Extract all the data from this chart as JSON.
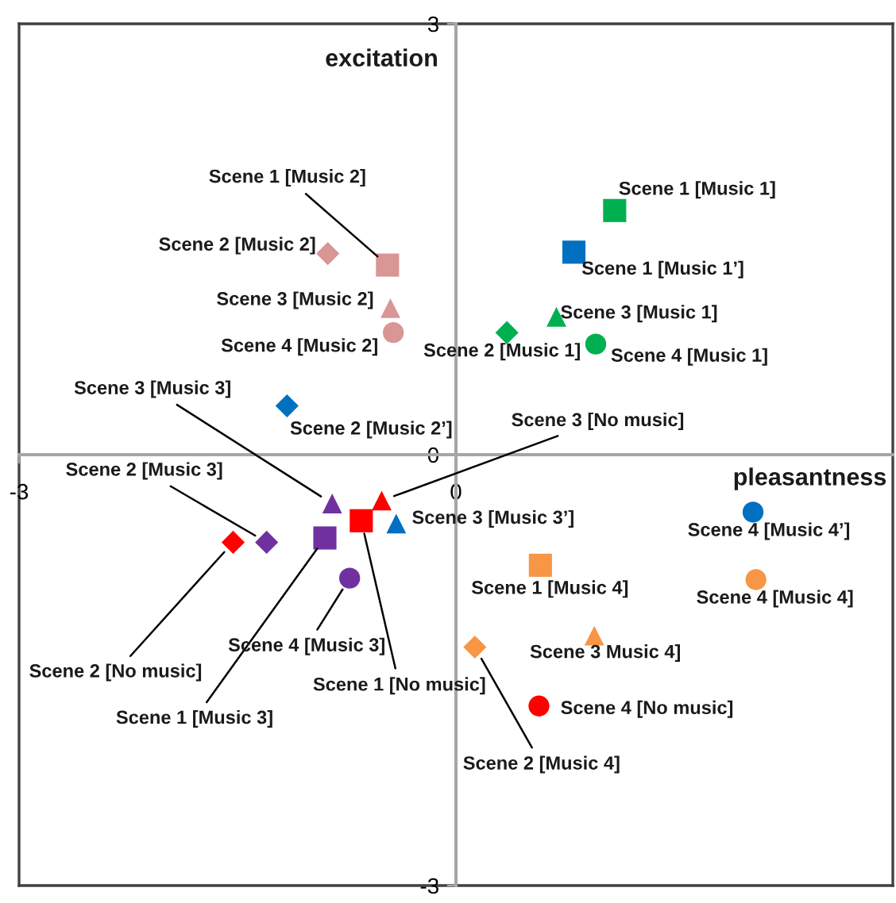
{
  "chart_data": {
    "type": "scatter",
    "xlabel": "pleasantness",
    "ylabel": "excitation",
    "xlim": [
      -3,
      3
    ],
    "ylim": [
      -3,
      3
    ],
    "xticks": [
      -3,
      0
    ],
    "yticks": [
      -3,
      0,
      3
    ],
    "grid": false,
    "legend": false,
    "series": [
      {
        "name": "Scene 1 [Music 1]",
        "color": "#00b050",
        "marker": "square",
        "x": [
          1.09
        ],
        "values": [
          1.7
        ]
      },
      {
        "name": "Scene 1 [Music 1’]",
        "color": "#0070c0",
        "marker": "square",
        "x": [
          0.81
        ],
        "values": [
          1.41
        ]
      },
      {
        "name": "Scene 3 [Music 1]",
        "color": "#00b050",
        "marker": "triangle",
        "x": [
          0.69
        ],
        "values": [
          0.96
        ]
      },
      {
        "name": "Scene 2 [Music 1]",
        "color": "#00b050",
        "marker": "diamond",
        "x": [
          0.35
        ],
        "values": [
          0.85
        ]
      },
      {
        "name": "Scene 4 [Music 1]",
        "color": "#00b050",
        "marker": "circle",
        "x": [
          0.96
        ],
        "values": [
          0.77
        ]
      },
      {
        "name": "Scene 1 [Music 2]",
        "color": "#d99694",
        "marker": "square",
        "x": [
          -0.47
        ],
        "values": [
          1.32
        ]
      },
      {
        "name": "Scene 2 [Music 2]",
        "color": "#d99694",
        "marker": "diamond",
        "x": [
          -0.88
        ],
        "values": [
          1.4
        ]
      },
      {
        "name": "Scene 3 [Music 2]",
        "color": "#d99694",
        "marker": "triangle",
        "x": [
          -0.45
        ],
        "values": [
          1.02
        ]
      },
      {
        "name": "Scene 4 [Music 2]",
        "color": "#d99694",
        "marker": "circle",
        "x": [
          -0.43
        ],
        "values": [
          0.85
        ]
      },
      {
        "name": "Scene 2 [Music 2’]",
        "color": "#0070c0",
        "marker": "diamond",
        "x": [
          -1.16
        ],
        "values": [
          0.34
        ]
      },
      {
        "name": "Scene 3 [Music 3]",
        "color": "#7030a0",
        "marker": "triangle",
        "x": [
          -0.85
        ],
        "values": [
          -0.34
        ]
      },
      {
        "name": "Scene 2 [Music 3]",
        "color": "#7030a0",
        "marker": "diamond",
        "x": [
          -1.3
        ],
        "values": [
          -0.61
        ]
      },
      {
        "name": "Scene 1 [Music 3]",
        "color": "#7030a0",
        "marker": "square",
        "x": [
          -0.9
        ],
        "values": [
          -0.58
        ]
      },
      {
        "name": "Scene 4 [Music 3]",
        "color": "#7030a0",
        "marker": "circle",
        "x": [
          -0.73
        ],
        "values": [
          -0.86
        ]
      },
      {
        "name": "Scene 2 [No music]",
        "color": "#ff0000",
        "marker": "diamond",
        "x": [
          -1.53
        ],
        "values": [
          -0.61
        ]
      },
      {
        "name": "Scene 1 [No music]",
        "color": "#ff0000",
        "marker": "square",
        "x": [
          -0.65
        ],
        "values": [
          -0.46
        ]
      },
      {
        "name": "Scene 3 [No music]",
        "color": "#ff0000",
        "marker": "triangle",
        "x": [
          -0.51
        ],
        "values": [
          -0.32
        ]
      },
      {
        "name": "Scene 3 [Music 3’]",
        "color": "#0070c0",
        "marker": "triangle",
        "x": [
          -0.41
        ],
        "values": [
          -0.48
        ]
      },
      {
        "name": "Scene 1 [Music 4]",
        "color": "#f79646",
        "marker": "square",
        "x": [
          0.58
        ],
        "values": [
          -0.77
        ]
      },
      {
        "name": "Scene 3 Music 4]",
        "color": "#f79646",
        "marker": "triangle",
        "x": [
          0.95
        ],
        "values": [
          -1.26
        ]
      },
      {
        "name": "Scene 2 [Music 4]",
        "color": "#f79646",
        "marker": "diamond",
        "x": [
          0.13
        ],
        "values": [
          -1.34
        ]
      },
      {
        "name": "Scene 4 [Music 4]",
        "color": "#f79646",
        "marker": "circle",
        "x": [
          2.06
        ],
        "values": [
          -0.87
        ]
      },
      {
        "name": "Scene 4 [Music 4’]",
        "color": "#0070c0",
        "marker": "circle",
        "x": [
          2.04
        ],
        "values": [
          -0.4
        ]
      },
      {
        "name": "Scene 4 [No music]",
        "color": "#ff0000",
        "marker": "circle",
        "x": [
          0.57
        ],
        "values": [
          -1.75
        ]
      }
    ]
  }
}
